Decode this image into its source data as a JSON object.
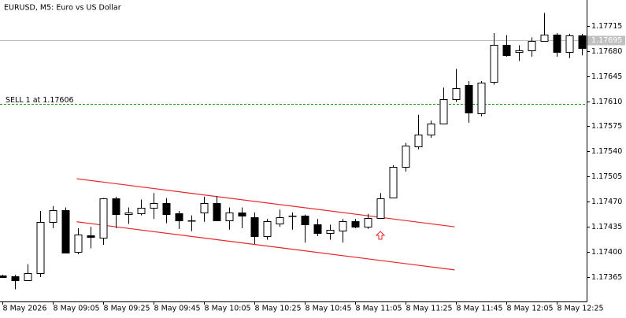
{
  "chart_data": {
    "type": "candlestick",
    "title": "EURUSD, M5:  Euro vs US Dollar",
    "categories": [
      "8 May 2026",
      null,
      null,
      null,
      "8 May 09:05",
      null,
      null,
      null,
      "8 May 09:25",
      null,
      null,
      null,
      "8 May 09:45",
      null,
      null,
      null,
      "8 May 10:05",
      null,
      null,
      null,
      "8 May 10:25",
      null,
      null,
      null,
      "8 May 10:45",
      null,
      null,
      null,
      "8 May 11:05",
      null,
      null,
      null,
      "8 May 11:25",
      null,
      null,
      null,
      "8 May 11:45",
      null,
      null,
      null,
      "8 May 12:05",
      null,
      null,
      null,
      "8 May 12:25",
      null,
      null
    ],
    "open": [
      1.17367,
      1.17366,
      1.17361,
      1.17371,
      1.17442,
      1.17458,
      1.174,
      1.17423,
      1.1742,
      1.17475,
      1.17453,
      1.17454,
      1.17462,
      1.17468,
      1.17454,
      1.17444,
      1.17455,
      1.17468,
      1.17444,
      1.17455,
      1.17448,
      1.17422,
      1.1744,
      1.1745,
      1.1745,
      1.17439,
      1.17426,
      1.1743,
      1.17443,
      1.17435,
      1.17447,
      1.17476,
      1.17519,
      1.17547,
      1.17563,
      1.17579,
      1.17613,
      1.17633,
      1.17593,
      1.17637,
      1.17689,
      1.17679,
      1.17681,
      1.17694,
      1.17703,
      1.17679,
      1.17702
    ],
    "high": [
      1.17368,
      1.17368,
      1.17383,
      1.17457,
      1.17464,
      1.17462,
      1.17433,
      1.17435,
      1.17475,
      1.17477,
      1.17462,
      1.17473,
      1.17482,
      1.17475,
      1.17457,
      1.17451,
      1.17477,
      1.17478,
      1.17462,
      1.17462,
      1.17455,
      1.17446,
      1.17459,
      1.17455,
      1.17452,
      1.17446,
      1.17438,
      1.17446,
      1.17446,
      1.17453,
      1.17482,
      1.17521,
      1.17552,
      1.17591,
      1.17583,
      1.17629,
      1.17655,
      1.17638,
      1.17638,
      1.17705,
      1.17702,
      1.17688,
      1.17699,
      1.17733,
      1.17705,
      1.17704,
      1.17704
    ],
    "low": [
      1.17365,
      1.17348,
      1.1736,
      1.17365,
      1.17433,
      1.17399,
      1.17397,
      1.17405,
      1.1741,
      1.17433,
      1.17439,
      1.17451,
      1.17446,
      1.1744,
      1.17432,
      1.17429,
      1.17442,
      1.17444,
      1.17431,
      1.17433,
      1.17411,
      1.17417,
      1.17435,
      1.17431,
      1.17413,
      1.17422,
      1.17417,
      1.17413,
      1.17433,
      1.17432,
      1.17446,
      1.17475,
      1.17512,
      1.17543,
      1.17559,
      1.17578,
      1.17609,
      1.1758,
      1.17589,
      1.17633,
      1.17672,
      1.17666,
      1.17672,
      1.17694,
      1.17672,
      1.1767,
      1.17674
    ],
    "close": [
      1.17365,
      1.17361,
      1.17371,
      1.17442,
      1.17458,
      1.17399,
      1.17424,
      1.17421,
      1.17475,
      1.17453,
      1.17455,
      1.17462,
      1.17468,
      1.17453,
      1.17444,
      1.17444,
      1.17468,
      1.17444,
      1.17455,
      1.1745,
      1.17422,
      1.17443,
      1.17448,
      1.17451,
      1.17439,
      1.17426,
      1.17431,
      1.17443,
      1.17435,
      1.17447,
      1.17475,
      1.17519,
      1.17548,
      1.17563,
      1.17579,
      1.17613,
      1.17628,
      1.17594,
      1.17636,
      1.17689,
      1.17674,
      1.17681,
      1.17694,
      1.17703,
      1.17679,
      1.17702,
      1.17684
    ],
    "ylim": [
      1.17331,
      1.17751
    ],
    "yticks": [
      1.17365,
      {
        "value": 1.174,
        "label": "1.17400"
      },
      1.17435,
      {
        "value": 1.1747,
        "label": "1.17470"
      },
      1.17505,
      {
        "value": 1.1754,
        "label": "1.17540"
      },
      1.17575,
      {
        "value": 1.1761,
        "label": "1.17610"
      },
      1.17645,
      {
        "value": 1.1768,
        "label": "1.17680"
      },
      1.17715
    ],
    "current_price": 1.17695,
    "order_line": {
      "label": "SELL 1 at 1.17606",
      "value": 1.17606,
      "color": "#1a9a1a"
    },
    "trendlines": [
      {
        "color": "#e8262a",
        "x": [
          5.9,
          35.9
        ],
        "values": [
          1.17502,
          1.17435
        ]
      },
      {
        "color": "#e8262a",
        "x": [
          5.9,
          35.9
        ],
        "values": [
          1.17442,
          1.17375
        ]
      }
    ]
  }
}
